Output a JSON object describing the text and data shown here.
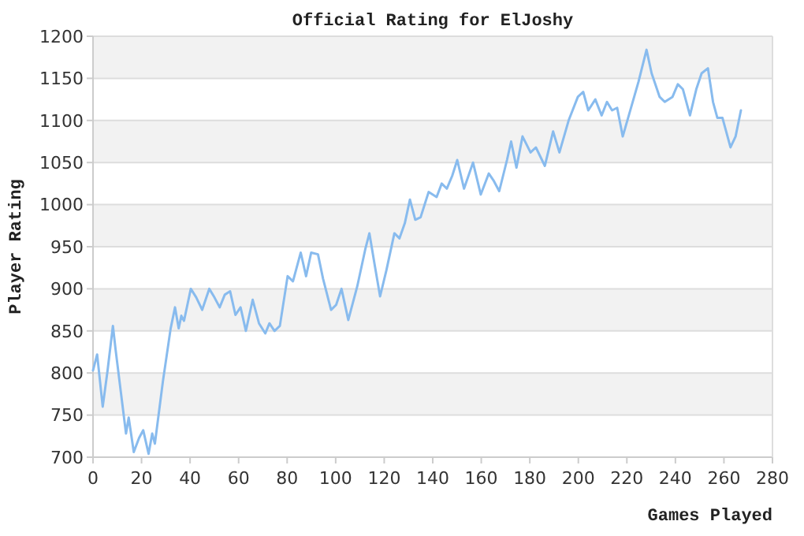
{
  "chart_data": {
    "type": "line",
    "title": "Official Rating for ElJoshy",
    "xlabel": "Games Played",
    "ylabel": "Player Rating",
    "xlim": [
      0,
      280
    ],
    "xticks": [
      0,
      20,
      40,
      60,
      80,
      100,
      120,
      140,
      160,
      180,
      200,
      220,
      240,
      260,
      280
    ],
    "ylim": [
      700,
      1200
    ],
    "yticks": [
      700,
      750,
      800,
      850,
      900,
      950,
      1000,
      1050,
      1100,
      1150,
      1200
    ],
    "grid": "y",
    "marker": "none",
    "line_style": "solid",
    "series": [
      {
        "color": "#88bbee",
        "x": [
          0,
          1.7,
          4,
          6,
          8.2,
          9.3,
          11.4,
          13.6,
          14.7,
          16.8,
          19,
          20.7,
          22.9,
          24.4,
          25.5,
          28.8,
          32,
          33.8,
          35.3,
          36.4,
          37.5,
          40.3,
          42.5,
          45,
          47.9,
          50,
          52.2,
          54.3,
          56.5,
          58.7,
          60.8,
          63,
          65.8,
          68.4,
          71,
          72.7,
          74.8,
          77,
          80.2,
          82.4,
          85.6,
          87.8,
          89.9,
          92.7,
          94.8,
          98.1,
          100.2,
          102.4,
          105.2,
          108.9,
          112.2,
          113.9,
          116.1,
          118.3,
          120.9,
          124.2,
          126.3,
          128.5,
          130.6,
          132.8,
          135,
          138.3,
          141.6,
          143.7,
          145.8,
          148,
          150.1,
          152.9,
          156.6,
          159.8,
          163.1,
          165.2,
          167.4,
          170.6,
          172.3,
          174.5,
          177,
          180.3,
          182.5,
          186.2,
          189.6,
          192.2,
          196,
          199.8,
          202,
          204.1,
          207,
          209.6,
          211.8,
          213.9,
          216,
          218.3,
          220.5,
          224.8,
          228.1,
          230.2,
          233.5,
          235.6,
          238.8,
          241,
          243.1,
          246,
          248.6,
          250.8,
          253.4,
          255.5,
          257.3,
          259.4,
          262.7,
          264.8,
          267
        ],
        "values": [
          803,
          822,
          760,
          803,
          856,
          828,
          779,
          728,
          747,
          706,
          723,
          732,
          704,
          728,
          716,
          790,
          853,
          878,
          853,
          868,
          862,
          900,
          890,
          875,
          900,
          890,
          878,
          893,
          897,
          869,
          878,
          850,
          887,
          859,
          847,
          859,
          850,
          856,
          915,
          909,
          943,
          915,
          943,
          941,
          912,
          875,
          881,
          900,
          863,
          903,
          947,
          966,
          928,
          891,
          922,
          966,
          960,
          978,
          1006,
          982,
          985,
          1015,
          1009,
          1025,
          1019,
          1034,
          1053,
          1019,
          1050,
          1012,
          1037,
          1028,
          1016,
          1053,
          1075,
          1044,
          1081,
          1062,
          1068,
          1046,
          1087,
          1062,
          1100,
          1128,
          1134,
          1112,
          1125,
          1106,
          1122,
          1112,
          1115,
          1081,
          1103,
          1146,
          1184,
          1156,
          1128,
          1122,
          1128,
          1143,
          1137,
          1106,
          1137,
          1156,
          1162,
          1122,
          1103,
          1103,
          1068,
          1081,
          1112
        ]
      }
    ]
  }
}
